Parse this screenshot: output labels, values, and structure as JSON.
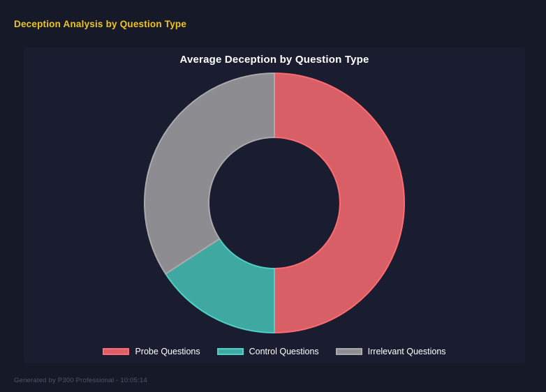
{
  "page": {
    "title": "Deception Analysis by Question Type",
    "footer": "Generated by P300 Professional - 10:05:14"
  },
  "colors": {
    "page_bg": "#161a28",
    "panel_bg": "#1a1d30",
    "page_title": "#efc320",
    "chart_title": "#ffffff",
    "legend_text": "#ffffff",
    "footer_text": "#4d5568"
  },
  "chart_data": {
    "type": "pie",
    "subtype": "doughnut",
    "title": "Average Deception by Question Type",
    "categories": [
      "Probe Questions",
      "Control Questions",
      "Irrelevant Questions"
    ],
    "values_percent": [
      50.0,
      15.8,
      34.2
    ],
    "segment_fill_colors": [
      "#d95f66",
      "#3fa8a1",
      "#8d8d91"
    ],
    "segment_border_colors": [
      "#ff6b72",
      "#4ed0c6",
      "#aaaaad"
    ],
    "start_angle": "top",
    "direction": "clockwise",
    "cutout_ratio": 0.5,
    "legend_position": "bottom",
    "grid": false
  }
}
